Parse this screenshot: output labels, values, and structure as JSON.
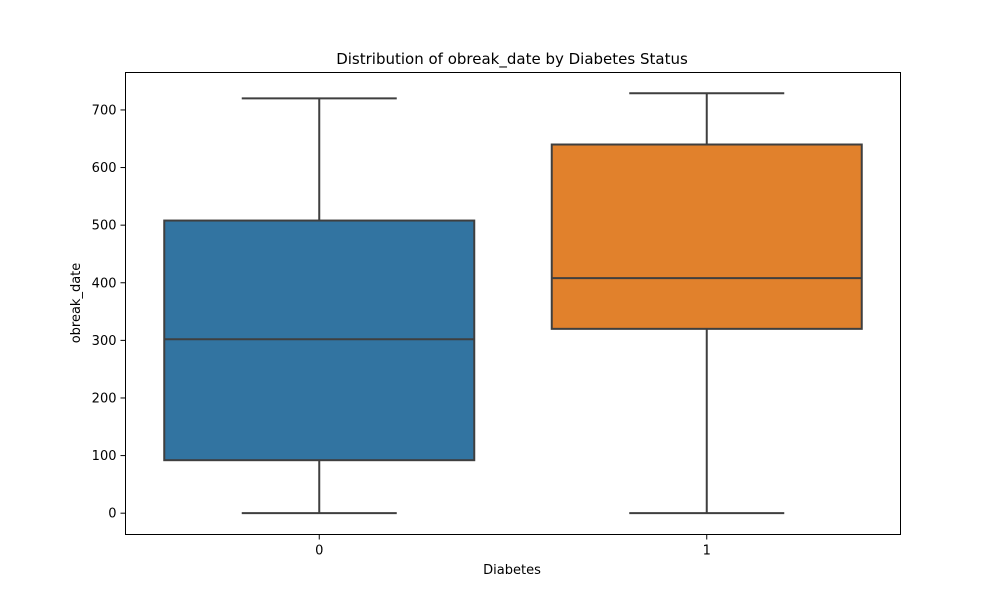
{
  "chart_data": {
    "type": "box",
    "title": "Distribution of obreak_date by Diabetes Status",
    "xlabel": "Diabetes",
    "ylabel": "obreak_date",
    "categories": [
      "0",
      "1"
    ],
    "ylim": [
      -37,
      765
    ],
    "yticks": [
      0,
      100,
      200,
      300,
      400,
      500,
      600,
      700
    ],
    "grid": false,
    "boxes": [
      {
        "category": "0",
        "min": 0,
        "q1": 92,
        "median": 302,
        "q3": 508,
        "max": 720,
        "color": "#3274a1"
      },
      {
        "category": "1",
        "min": 0,
        "q1": 320,
        "median": 408,
        "q3": 640,
        "max": 729,
        "color": "#e1812c"
      }
    ]
  }
}
